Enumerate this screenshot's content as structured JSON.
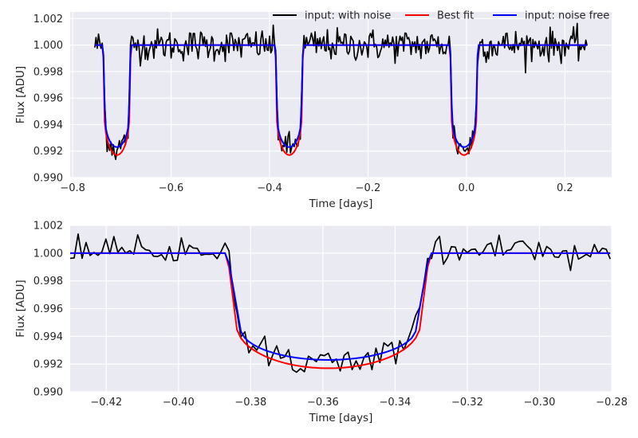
{
  "chart_data": [
    {
      "type": "line",
      "xlabel": "Time [days]",
      "ylabel": "Flux [ADU]",
      "xlim": [
        -0.805,
        0.295
      ],
      "ylim": [
        0.99,
        1.0025
      ],
      "xticks": [
        -0.8,
        -0.6,
        -0.4,
        -0.2,
        0.0,
        0.2
      ],
      "xtick_labels": [
        "−0.8",
        "−0.6",
        "−0.4",
        "−0.2",
        "0.0",
        "0.2"
      ],
      "yticks": [
        0.99,
        0.992,
        0.994,
        0.996,
        0.998,
        1.0,
        1.002
      ],
      "ytick_labels": [
        "0.990",
        "0.992",
        "0.994",
        "0.996",
        "0.998",
        "1.000",
        "1.002"
      ],
      "grid": true,
      "legend": {
        "position": "top-right",
        "columns": 3
      },
      "transit_centers": [
        -0.71,
        -0.36,
        -0.005
      ],
      "transit_half_width": 0.028,
      "series": [
        {
          "name": "input: with noise",
          "color": "#000000",
          "x_range": [
            -0.755,
            0.245
          ],
          "baseline": 1.0,
          "bottom_depth": 0.0078,
          "noise_sd": 0.0006
        },
        {
          "name": "Best fit",
          "color": "#ff0000",
          "x_range": [
            -0.755,
            0.245
          ],
          "baseline": 1.0,
          "bottom_depth": 0.0083
        },
        {
          "name": "input: noise free",
          "color": "#0000ff",
          "x_range": [
            -0.755,
            0.245
          ],
          "baseline": 1.0,
          "bottom_depth": 0.0077
        }
      ]
    },
    {
      "type": "line",
      "xlabel": "Time [days]",
      "ylabel": "Flux [ADU]",
      "xlim": [
        -0.43,
        -0.28
      ],
      "ylim": [
        0.99,
        1.002
      ],
      "xticks": [
        -0.42,
        -0.4,
        -0.38,
        -0.36,
        -0.34,
        -0.32,
        -0.3,
        -0.28
      ],
      "xtick_labels": [
        "−0.42",
        "−0.40",
        "−0.38",
        "−0.36",
        "−0.34",
        "−0.32",
        "−0.30",
        "−0.28"
      ],
      "yticks": [
        0.99,
        0.992,
        0.994,
        0.996,
        0.998,
        1.0,
        1.002
      ],
      "ytick_labels": [
        "0.990",
        "0.992",
        "0.994",
        "0.996",
        "0.998",
        "1.000",
        "1.002"
      ],
      "grid": true,
      "transit_center": -0.3585,
      "transit_half_width": 0.028,
      "series": [
        {
          "name": "input: with noise",
          "color": "#000000",
          "baseline": 1.0,
          "bottom_depth": 0.0077,
          "noise_sd": 0.0006
        },
        {
          "name": "Best fit",
          "color": "#ff0000",
          "baseline": 1.0,
          "bottom_depth": 0.0083
        },
        {
          "name": "input: noise free",
          "color": "#0000ff",
          "baseline": 1.0,
          "bottom_depth": 0.0077
        }
      ]
    }
  ]
}
